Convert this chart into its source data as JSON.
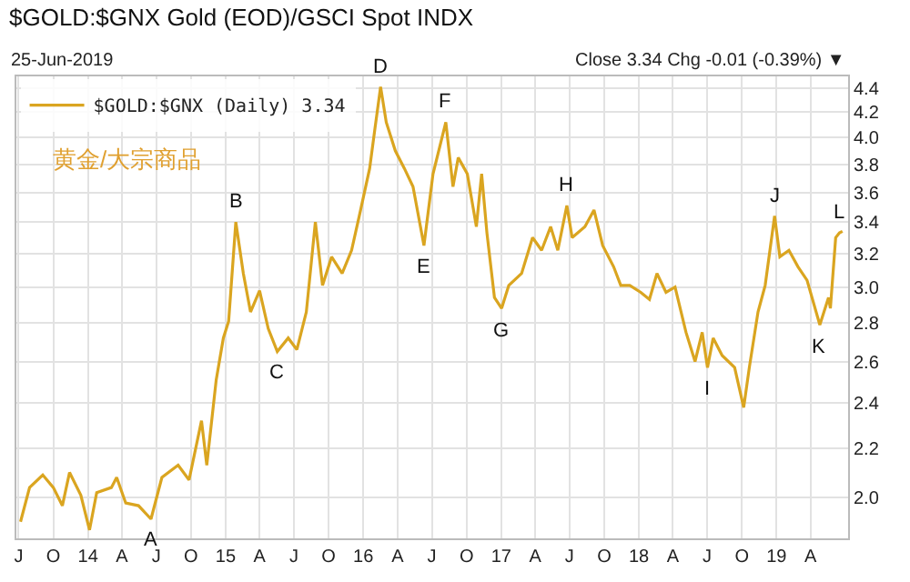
{
  "chart_data": {
    "type": "line",
    "title": "$GOLD:$GNX Gold (EOD)/GSCI Spot INDX",
    "subtitle": "25-Jun-2019",
    "annotations": [
      "Close 3.34 Chg -0.01 (-0.39%) ▼",
      "黄金/大宗商品",
      {
        "text": "A",
        "x": "2014-06-17",
        "y": 1.92
      },
      {
        "text": "B",
        "x": "2015-01-28",
        "y": 3.4
      },
      {
        "text": "C",
        "x": "2015-05-18",
        "y": 2.65
      },
      {
        "text": "D",
        "x": "2016-02-16",
        "y": 4.41
      },
      {
        "text": "E",
        "x": "2016-06-10",
        "y": 3.25
      },
      {
        "text": "F",
        "x": "2016-08-07",
        "y": 4.12
      },
      {
        "text": "G",
        "x": "2017-01-02",
        "y": 2.88
      },
      {
        "text": "H",
        "x": "2017-06-24",
        "y": 3.51
      },
      {
        "text": "I",
        "x": "2018-07-02",
        "y": 2.57
      },
      {
        "text": "J",
        "x": "2018-12-27",
        "y": 3.44
      },
      {
        "text": "K",
        "x": "2019-04-26",
        "y": 2.79
      },
      {
        "text": "L",
        "x": "2019-06-17",
        "y": 3.33
      }
    ],
    "x": [
      "2013-07-06",
      "2013-07-30",
      "2013-09-03",
      "2013-10-01",
      "2013-10-25",
      "2013-11-13",
      "2013-12-13",
      "2014-01-05",
      "2014-01-24",
      "2014-03-04",
      "2014-03-18",
      "2014-04-11",
      "2014-05-15",
      "2014-06-17",
      "2014-07-16",
      "2014-08-28",
      "2014-09-26",
      "2014-10-29",
      "2014-11-12",
      "2014-12-07",
      "2014-12-26",
      "2015-01-09",
      "2015-01-28",
      "2015-02-17",
      "2015-03-08",
      "2015-04-01",
      "2015-04-24",
      "2015-05-18",
      "2015-06-16",
      "2015-07-09",
      "2015-08-03",
      "2015-08-27",
      "2015-09-15",
      "2015-10-09",
      "2015-11-06",
      "2015-12-01",
      "2015-12-25",
      "2016-01-18",
      "2016-02-01",
      "2016-02-16",
      "2016-03-02",
      "2016-03-26",
      "2016-04-19",
      "2016-05-12",
      "2016-06-10",
      "2016-07-04",
      "2016-08-07",
      "2016-08-26",
      "2016-09-09",
      "2016-10-03",
      "2016-10-27",
      "2016-11-10",
      "2016-11-24",
      "2016-12-14",
      "2017-01-02",
      "2017-01-21",
      "2017-02-24",
      "2017-03-25",
      "2017-04-18",
      "2017-05-12",
      "2017-05-31",
      "2017-06-24",
      "2017-07-08",
      "2017-08-11",
      "2017-09-04",
      "2017-09-27",
      "2017-10-26",
      "2017-11-14",
      "2017-12-08",
      "2018-01-06",
      "2018-01-29",
      "2018-02-18",
      "2018-03-14",
      "2018-04-07",
      "2018-05-06",
      "2018-05-30",
      "2018-06-18",
      "2018-07-02",
      "2018-07-17",
      "2018-08-10",
      "2018-09-12",
      "2018-10-06",
      "2018-10-21",
      "2018-11-13",
      "2018-12-02",
      "2018-12-27",
      "2019-01-10",
      "2019-02-03",
      "2019-02-27",
      "2019-03-23",
      "2019-04-26",
      "2019-05-19",
      "2019-05-24",
      "2019-06-07",
      "2019-06-17",
      "2019-06-25"
    ],
    "series": [
      {
        "name": "$GOLD:$GNX (Daily) 3.34",
        "color": "#daa520",
        "values": [
          1.91,
          2.04,
          2.09,
          2.04,
          1.97,
          2.1,
          2.01,
          1.88,
          2.02,
          2.04,
          2.08,
          1.98,
          1.97,
          1.92,
          2.08,
          2.13,
          2.07,
          2.32,
          2.13,
          2.51,
          2.72,
          2.81,
          3.4,
          3.08,
          2.86,
          2.98,
          2.77,
          2.65,
          2.72,
          2.66,
          2.86,
          3.4,
          3.01,
          3.18,
          3.08,
          3.22,
          3.48,
          3.77,
          4.07,
          4.41,
          4.12,
          3.9,
          3.77,
          3.64,
          3.25,
          3.73,
          4.12,
          3.64,
          3.85,
          3.73,
          3.37,
          3.73,
          3.33,
          2.94,
          2.88,
          3.01,
          3.08,
          3.3,
          3.22,
          3.37,
          3.22,
          3.51,
          3.3,
          3.37,
          3.48,
          3.25,
          3.12,
          3.01,
          3.01,
          2.97,
          2.93,
          3.08,
          2.97,
          3.0,
          2.75,
          2.6,
          2.75,
          2.57,
          2.72,
          2.63,
          2.57,
          2.38,
          2.57,
          2.86,
          3.01,
          3.44,
          3.18,
          3.22,
          3.12,
          3.04,
          2.79,
          2.94,
          2.88,
          3.3,
          3.33,
          3.34
        ]
      }
    ],
    "xlim": [
      "2013-06-25",
      "2019-07-10"
    ],
    "xticks": [
      {
        "value": "2013-07-01",
        "label": "J"
      },
      {
        "value": "2013-10-01",
        "label": "O"
      },
      {
        "value": "2014-01-01",
        "label": "14"
      },
      {
        "value": "2014-04-01",
        "label": "A"
      },
      {
        "value": "2014-07-01",
        "label": "J"
      },
      {
        "value": "2014-10-01",
        "label": "O"
      },
      {
        "value": "2015-01-01",
        "label": "15"
      },
      {
        "value": "2015-04-01",
        "label": "A"
      },
      {
        "value": "2015-07-01",
        "label": "J"
      },
      {
        "value": "2015-10-01",
        "label": "O"
      },
      {
        "value": "2016-01-01",
        "label": "16"
      },
      {
        "value": "2016-04-01",
        "label": "A"
      },
      {
        "value": "2016-07-01",
        "label": "J"
      },
      {
        "value": "2016-10-01",
        "label": "O"
      },
      {
        "value": "2017-01-01",
        "label": "17"
      },
      {
        "value": "2017-04-01",
        "label": "A"
      },
      {
        "value": "2017-07-01",
        "label": "J"
      },
      {
        "value": "2017-10-01",
        "label": "O"
      },
      {
        "value": "2018-01-01",
        "label": "18"
      },
      {
        "value": "2018-04-01",
        "label": "A"
      },
      {
        "value": "2018-07-01",
        "label": "J"
      },
      {
        "value": "2018-10-01",
        "label": "O"
      },
      {
        "value": "2019-01-01",
        "label": "19"
      },
      {
        "value": "2019-04-01",
        "label": "A"
      }
    ],
    "ylim": [
      1.85,
      4.5
    ],
    "yticks": [
      {
        "value": 2,
        "label": "2.0"
      },
      2.2,
      2.4,
      2.6,
      2.8,
      {
        "value": 3,
        "label": "3.0"
      },
      3.2,
      3.4,
      3.6,
      3.8,
      {
        "value": 4,
        "label": "4.0"
      },
      4.2,
      4.4
    ],
    "log": "y",
    "grid": true,
    "legend": "top left",
    "marker": "none",
    "line_style": "solid"
  }
}
